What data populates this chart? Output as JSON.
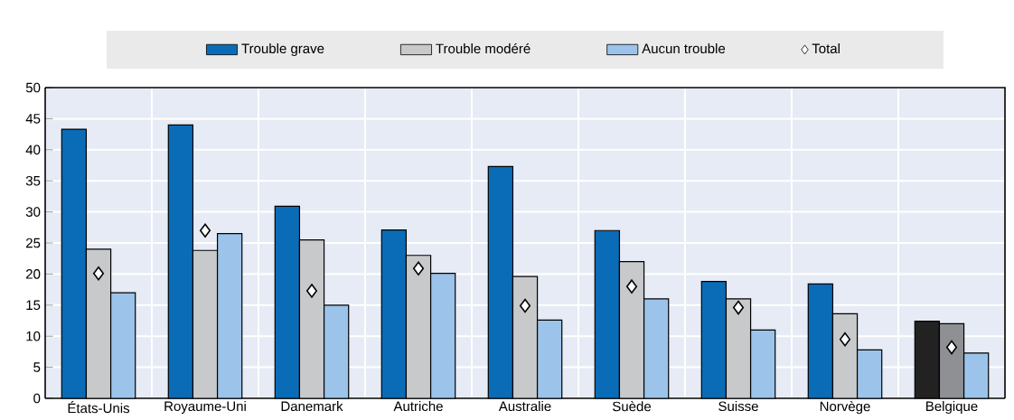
{
  "chart_data": {
    "type": "bar",
    "categories": [
      "États-Unis",
      "Royaume-Uni",
      "Danemark",
      "Autriche",
      "Australie",
      "Suède",
      "Suisse",
      "Norvège",
      "Belgique"
    ],
    "series": [
      {
        "name": "Trouble grave",
        "color": "#0a6cb7",
        "colors": [
          "#0a6cb7",
          "#0a6cb7",
          "#0a6cb7",
          "#0a6cb7",
          "#0a6cb7",
          "#0a6cb7",
          "#0a6cb7",
          "#0a6cb7",
          "#222222"
        ],
        "values": [
          43.3,
          44.0,
          30.9,
          27.1,
          37.3,
          27.0,
          18.8,
          18.4,
          12.4
        ]
      },
      {
        "name": "Trouble modéré",
        "color": "#c8c9cb",
        "colors": [
          "#c8c9cb",
          "#c8c9cb",
          "#c8c9cb",
          "#c8c9cb",
          "#c8c9cb",
          "#c8c9cb",
          "#c8c9cb",
          "#c8c9cb",
          "#8f9093"
        ],
        "values": [
          24.0,
          23.8,
          25.5,
          23.0,
          19.6,
          22.0,
          16.0,
          13.6,
          12.0
        ]
      },
      {
        "name": "Aucun trouble",
        "color": "#9cc3ea",
        "values": [
          17.0,
          26.5,
          15.0,
          20.1,
          12.6,
          16.0,
          11.0,
          7.8,
          7.3
        ]
      },
      {
        "name": "Total",
        "type": "scatter",
        "marker": "diamond",
        "color": "#ffffff",
        "values": [
          20.1,
          27.0,
          17.3,
          20.9,
          14.9,
          18.0,
          14.6,
          9.5,
          8.2
        ]
      }
    ],
    "ylim": [
      0,
      50
    ],
    "yticks": [
      0,
      5,
      10,
      15,
      20,
      25,
      30,
      35,
      40,
      45,
      50
    ],
    "grid": true,
    "legend": "top"
  }
}
